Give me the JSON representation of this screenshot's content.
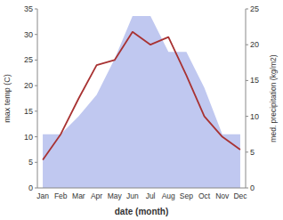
{
  "chart_data": {
    "type": "line",
    "categories": [
      "Jan",
      "Feb",
      "Mar",
      "Apr",
      "May",
      "Jun",
      "Jul",
      "Aug",
      "Sep",
      "Oct",
      "Nov",
      "Dec"
    ],
    "xlabel": "date (month)",
    "ylabel": "max temp (C)",
    "y2label": "med. precipitation (kg/m2)",
    "series": [
      {
        "type": "area",
        "axis": "y2",
        "color": "#c0c8f0",
        "values": [
          7.5,
          7.5,
          10.0,
          13.0,
          18.0,
          24.0,
          24.0,
          19.0,
          19.0,
          14.0,
          7.5,
          7.5
        ]
      },
      {
        "type": "line",
        "color": "#a83232",
        "values": [
          5.5,
          10.5,
          17.5,
          24.0,
          25.0,
          30.5,
          28.0,
          29.5,
          22.0,
          14.0,
          10.0,
          7.5
        ]
      }
    ],
    "ylim": [
      0,
      35
    ],
    "yticks": [
      0,
      5,
      10,
      15,
      20,
      25,
      30,
      35
    ],
    "y2lim": [
      0,
      25
    ],
    "y2ticks": [
      0,
      5,
      10,
      15,
      20,
      25
    ],
    "grid": false
  }
}
